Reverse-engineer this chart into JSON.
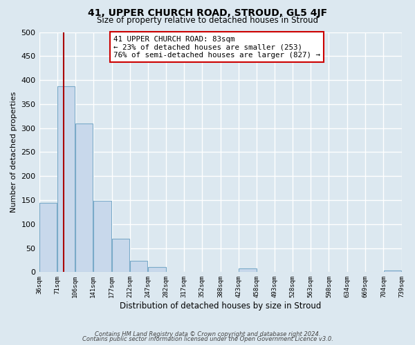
{
  "title": "41, UPPER CHURCH ROAD, STROUD, GL5 4JF",
  "subtitle": "Size of property relative to detached houses in Stroud",
  "xlabel": "Distribution of detached houses by size in Stroud",
  "ylabel": "Number of detached properties",
  "bin_edges": [
    36,
    71,
    106,
    141,
    177,
    212,
    247,
    282,
    317,
    352,
    388,
    423,
    458,
    493,
    528,
    563,
    598,
    634,
    669,
    704,
    739
  ],
  "bin_labels": [
    "36sqm",
    "71sqm",
    "106sqm",
    "141sqm",
    "177sqm",
    "212sqm",
    "247sqm",
    "282sqm",
    "317sqm",
    "352sqm",
    "388sqm",
    "423sqm",
    "458sqm",
    "493sqm",
    "528sqm",
    "563sqm",
    "598sqm",
    "634sqm",
    "669sqm",
    "704sqm",
    "739sqm"
  ],
  "counts": [
    144,
    387,
    309,
    148,
    70,
    24,
    10,
    0,
    0,
    0,
    0,
    7,
    0,
    0,
    0,
    0,
    0,
    0,
    0,
    3
  ],
  "bar_color": "#c8d8eb",
  "bar_edge_color": "#7aaac8",
  "property_line_x": 83,
  "property_line_color": "#aa0000",
  "annotation_line1": "41 UPPER CHURCH ROAD: 83sqm",
  "annotation_line2": "← 23% of detached houses are smaller (253)",
  "annotation_line3": "76% of semi-detached houses are larger (827) →",
  "annotation_box_color": "#ffffff",
  "annotation_box_edge": "#cc0000",
  "ylim": [
    0,
    500
  ],
  "yticks": [
    0,
    50,
    100,
    150,
    200,
    250,
    300,
    350,
    400,
    450,
    500
  ],
  "footnote_line1": "Contains HM Land Registry data © Crown copyright and database right 2024.",
  "footnote_line2": "Contains public sector information licensed under the Open Government Licence v3.0.",
  "background_color": "#dce8f0",
  "plot_bg_color": "#dce8f0",
  "grid_color": "#ffffff"
}
